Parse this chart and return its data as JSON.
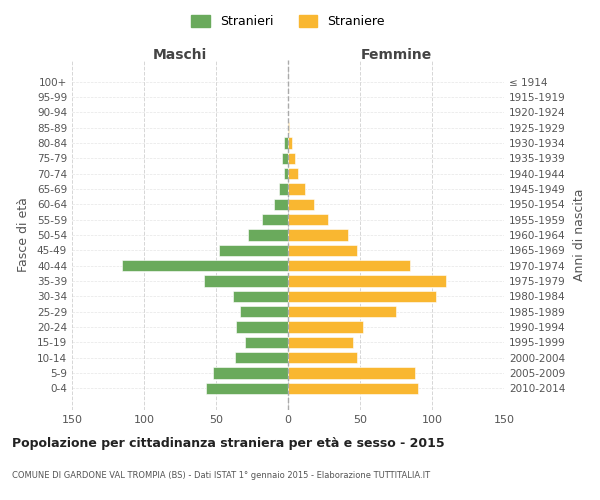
{
  "age_groups": [
    "100+",
    "95-99",
    "90-94",
    "85-89",
    "80-84",
    "75-79",
    "70-74",
    "65-69",
    "60-64",
    "55-59",
    "50-54",
    "45-49",
    "40-44",
    "35-39",
    "30-34",
    "25-29",
    "20-24",
    "15-19",
    "10-14",
    "5-9",
    "0-4"
  ],
  "birth_years": [
    "≤ 1914",
    "1915-1919",
    "1920-1924",
    "1925-1929",
    "1930-1934",
    "1935-1939",
    "1940-1944",
    "1945-1949",
    "1950-1954",
    "1955-1959",
    "1960-1964",
    "1965-1969",
    "1970-1974",
    "1975-1979",
    "1980-1984",
    "1985-1989",
    "1990-1994",
    "1995-1999",
    "2000-2004",
    "2005-2009",
    "2010-2014"
  ],
  "maschi": [
    0,
    0,
    0,
    0,
    3,
    4,
    3,
    6,
    10,
    18,
    28,
    48,
    115,
    58,
    38,
    33,
    36,
    30,
    37,
    52,
    57
  ],
  "femmine": [
    0,
    0,
    0,
    1,
    3,
    5,
    7,
    12,
    18,
    28,
    42,
    48,
    85,
    110,
    103,
    75,
    52,
    45,
    48,
    88,
    90
  ],
  "male_color": "#6aaa5c",
  "female_color": "#f9b731",
  "background_color": "#ffffff",
  "grid_color": "#cccccc",
  "title": "Popolazione per cittadinanza straniera per età e sesso - 2015",
  "subtitle": "COMUNE DI GARDONE VAL TROMPIA (BS) - Dati ISTAT 1° gennaio 2015 - Elaborazione TUTTITALIA.IT",
  "xlabel_left": "Maschi",
  "xlabel_right": "Femmine",
  "ylabel_left": "Fasce di età",
  "ylabel_right": "Anni di nascita",
  "legend_male": "Stranieri",
  "legend_female": "Straniere",
  "xlim": 150
}
